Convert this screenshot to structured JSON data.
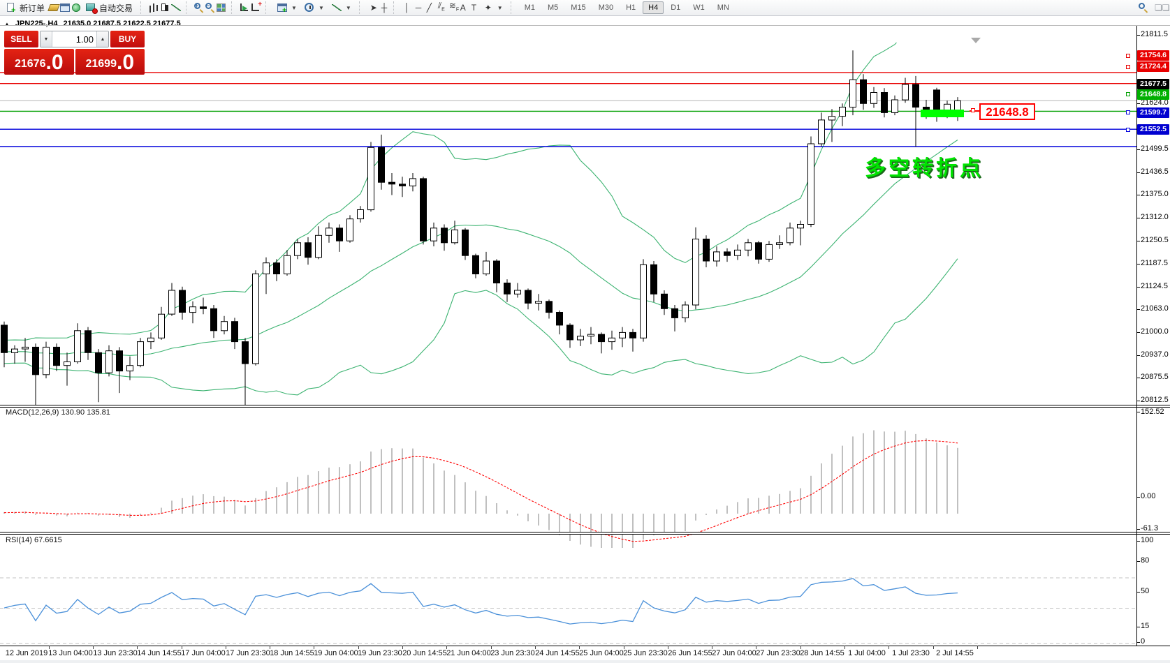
{
  "toolbar": {
    "new_order_label": "新订单",
    "autotrading_label": "自动交易",
    "icons": [
      "new-order-icon",
      "market-watch-icon",
      "data-window-icon",
      "navigator-icon",
      "autotrading-icon",
      "bar-chart-icon",
      "candlestick-chart-icon",
      "line-chart-icon",
      "zoom-in-icon",
      "zoom-out-icon",
      "tile-windows-icon",
      "auto-scroll-icon",
      "chart-shift-icon",
      "indicators-icon",
      "periods-clock-icon",
      "templates-icon",
      "cursor-icon",
      "crosshair-icon",
      "vertical-line-icon",
      "horizontal-line-icon",
      "trendline-icon",
      "channel-icon",
      "fibonacci-icon",
      "text-icon",
      "text-label-icon",
      "arrows-icon",
      "search-icon",
      "chat-icon"
    ],
    "timeframes": [
      "M1",
      "M5",
      "M15",
      "M30",
      "H1",
      "H4",
      "D1",
      "W1",
      "MN"
    ],
    "active_timeframe": "H4"
  },
  "trade_panel": {
    "sell_label": "SELL",
    "buy_label": "BUY",
    "volume": "1.00",
    "sell_price_main": "21676",
    "sell_price_big": ".0",
    "buy_price_main": "21699",
    "buy_price_big": ".0"
  },
  "chart": {
    "symbol_period": "JPN225-,H4",
    "ohlc_line": "21635.0 21687.5 21622.5 21677.5",
    "collapse_arrow": "▲",
    "price_axis_ticks": [
      21811.5,
      21624.0,
      21499.5,
      21436.5,
      21375.0,
      21312.0,
      21250.5,
      21187.5,
      21124.5,
      21063.0,
      21000.0,
      20937.0,
      20875.5,
      20812.5
    ],
    "levels": [
      {
        "label": "21754.6",
        "value": 21754.6,
        "line_color": "#e80000",
        "tag_color": "#e80000",
        "marker": true
      },
      {
        "label": "21724.4",
        "value": 21724.4,
        "line_color": "#e80000",
        "tag_color": "#e80000",
        "marker": true
      },
      {
        "label": "21677.5",
        "value": 21677.5,
        "line_color": "#b6b6b6",
        "tag_color": "#000000",
        "marker": false
      },
      {
        "label": "21648.8",
        "value": 21648.8,
        "line_color": "#00a000",
        "tag_color": "#00b000",
        "marker": true
      },
      {
        "label": "21599.7",
        "value": 21599.7,
        "line_color": "#0000dc",
        "tag_color": "#0000d0",
        "marker": true
      },
      {
        "label": "21552.5",
        "value": 21552.5,
        "line_color": "#0000dc",
        "tag_color": "#0000d0",
        "marker": true
      }
    ],
    "annotation_text": "多空转折点",
    "annotation_color": "#00e400",
    "callout_text": "21648.8",
    "callout_color": "#ff0000",
    "highlight_color": "#00ff00",
    "time_axis": [
      "12 Jun 2019",
      "13 Jun 04:00",
      "13 Jun 23:30",
      "14 Jun 14:55",
      "17 Jun 04:00",
      "17 Jun 23:30",
      "18 Jun 14:55",
      "19 Jun 04:00",
      "19 Jun 23:30",
      "20 Jun 14:55",
      "21 Jun 04:00",
      "23 Jun 23:30",
      "24 Jun 14:55",
      "25 Jun 04:00",
      "25 Jun 23:30",
      "26 Jun 14:55",
      "27 Jun 04:00",
      "27 Jun 23:30",
      "28 Jun 14:55",
      "1 Jul 04:00",
      "1 Jul 23:30",
      "2 Jul 14:55"
    ]
  },
  "macd": {
    "label": "MACD(12,26,9)",
    "value_main": "130.90",
    "value_signal": "135.81",
    "axis_max": "152.52",
    "axis_zero": "0.00",
    "axis_min": "-61.3",
    "histogram_color": "#c0c0c0",
    "signal_color": "#ff0000"
  },
  "rsi": {
    "label": "RSI(14)",
    "value": "67.6615",
    "axis_labels": [
      "100",
      "80",
      "50",
      "15",
      "0"
    ],
    "level_values": [
      80,
      50,
      15
    ],
    "line_color": "#4a90d9"
  },
  "chart_data": {
    "type": "candlestick",
    "symbol": "JPN225-",
    "period": "H4",
    "indicators": [
      "Bollinger Bands (20,2)",
      "MACD(12,26,9)",
      "RSI(14)"
    ],
    "bollinger_color": "#3CB371",
    "price_range_top": 21811.5,
    "price_range_bottom": 20812.5,
    "candles": [
      [
        21065,
        21075,
        20950,
        20990
      ],
      [
        20990,
        21010,
        20960,
        21000
      ],
      [
        21000,
        21030,
        20965,
        21005
      ],
      [
        21005,
        21015,
        20845,
        20930
      ],
      [
        20930,
        21020,
        20920,
        21005
      ],
      [
        21005,
        21015,
        20940,
        20955
      ],
      [
        20955,
        20990,
        20900,
        20965
      ],
      [
        20965,
        21070,
        20960,
        21050
      ],
      [
        21050,
        21060,
        20970,
        20990
      ],
      [
        20990,
        21000,
        20855,
        20935
      ],
      [
        20935,
        21010,
        20925,
        20995
      ],
      [
        20995,
        21005,
        20880,
        20940
      ],
      [
        20940,
        20980,
        20915,
        20955
      ],
      [
        20955,
        21030,
        20950,
        21020
      ],
      [
        21020,
        21045,
        21000,
        21030
      ],
      [
        21030,
        21115,
        21025,
        21095
      ],
      [
        21095,
        21180,
        21090,
        21160
      ],
      [
        21160,
        21170,
        21080,
        21100
      ],
      [
        21100,
        21130,
        21070,
        21115
      ],
      [
        21115,
        21140,
        21095,
        21110
      ],
      [
        21110,
        21120,
        21030,
        21050
      ],
      [
        21050,
        21090,
        21040,
        21075
      ],
      [
        21075,
        21085,
        21000,
        21020
      ],
      [
        21020,
        21030,
        20845,
        20960
      ],
      [
        20960,
        21215,
        20955,
        21205
      ],
      [
        21205,
        21250,
        21150,
        21235
      ],
      [
        21235,
        21245,
        21185,
        21205
      ],
      [
        21205,
        21270,
        21200,
        21255
      ],
      [
        21255,
        21300,
        21245,
        21290
      ],
      [
        21290,
        21305,
        21230,
        21250
      ],
      [
        21250,
        21335,
        21245,
        21310
      ],
      [
        21310,
        21345,
        21290,
        21330
      ],
      [
        21330,
        21340,
        21265,
        21295
      ],
      [
        21295,
        21365,
        21290,
        21355
      ],
      [
        21355,
        21390,
        21345,
        21380
      ],
      [
        21380,
        21565,
        21375,
        21550
      ],
      [
        21550,
        21585,
        21435,
        21455
      ],
      [
        21455,
        21480,
        21420,
        21450
      ],
      [
        21450,
        21470,
        21415,
        21445
      ],
      [
        21445,
        21480,
        21430,
        21465
      ],
      [
        21465,
        21470,
        21285,
        21295
      ],
      [
        21295,
        21345,
        21280,
        21330
      ],
      [
        21330,
        21340,
        21268,
        21290
      ],
      [
        21290,
        21350,
        21285,
        21325
      ],
      [
        21325,
        21330,
        21243,
        21255
      ],
      [
        21255,
        21260,
        21193,
        21205
      ],
      [
        21205,
        21265,
        21200,
        21240
      ],
      [
        21240,
        21245,
        21155,
        21180
      ],
      [
        21180,
        21190,
        21128,
        21150
      ],
      [
        21150,
        21180,
        21140,
        21160
      ],
      [
        21160,
        21165,
        21108,
        21125
      ],
      [
        21125,
        21150,
        21105,
        21130
      ],
      [
        21130,
        21135,
        21083,
        21100
      ],
      [
        21100,
        21105,
        21040,
        21065
      ],
      [
        21065,
        21070,
        21003,
        21025
      ],
      [
        21025,
        21055,
        21008,
        21035
      ],
      [
        21035,
        21060,
        21013,
        21040
      ],
      [
        21040,
        21045,
        20988,
        21020
      ],
      [
        21020,
        21050,
        20998,
        21030
      ],
      [
        21030,
        21060,
        21005,
        21045
      ],
      [
        21045,
        21055,
        20993,
        21030
      ],
      [
        21030,
        21245,
        21020,
        21230
      ],
      [
        21230,
        21240,
        21128,
        21150
      ],
      [
        21150,
        21160,
        21093,
        21110
      ],
      [
        21110,
        21120,
        21048,
        21085
      ],
      [
        21085,
        21130,
        21073,
        21120
      ],
      [
        21120,
        21332,
        21108,
        21300
      ],
      [
        21300,
        21310,
        21223,
        21240
      ],
      [
        21240,
        21280,
        21225,
        21265
      ],
      [
        21265,
        21275,
        21238,
        21255
      ],
      [
        21255,
        21285,
        21243,
        21270
      ],
      [
        21270,
        21300,
        21253,
        21290
      ],
      [
        21290,
        21295,
        21233,
        21245
      ],
      [
        21245,
        21295,
        21238,
        21285
      ],
      [
        21285,
        21310,
        21273,
        21290
      ],
      [
        21290,
        21345,
        21283,
        21330
      ],
      [
        21330,
        21350,
        21283,
        21340
      ],
      [
        21340,
        21580,
        21333,
        21560
      ],
      [
        21560,
        21645,
        21553,
        21625
      ],
      [
        21625,
        21655,
        21565,
        21635
      ],
      [
        21635,
        21670,
        21608,
        21660
      ],
      [
        21660,
        21815,
        21638,
        21735
      ],
      [
        21735,
        21750,
        21653,
        21670
      ],
      [
        21670,
        21715,
        21658,
        21700
      ],
      [
        21700,
        21712,
        21632,
        21645
      ],
      [
        21645,
        21692,
        21638,
        21680
      ],
      [
        21680,
        21740,
        21672,
        21722
      ],
      [
        21722,
        21745,
        21552,
        21660
      ],
      [
        21660,
        21680,
        21628,
        21640
      ],
      [
        21707,
        21713,
        21620,
        21645
      ],
      [
        21645,
        21678,
        21630,
        21668
      ],
      [
        21635,
        21687.5,
        21622.5,
        21677.5
      ]
    ]
  }
}
